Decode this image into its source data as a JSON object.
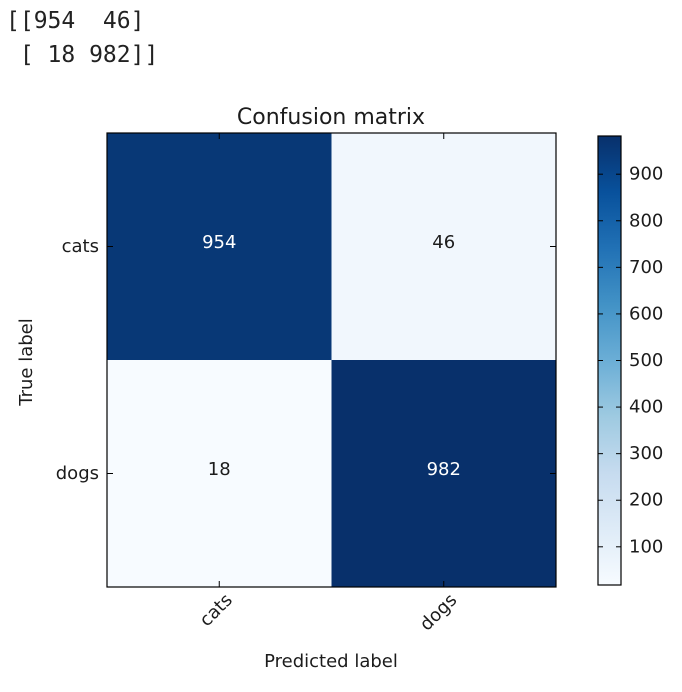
{
  "console_output": {
    "lines": [
      "[[954  46]",
      " [ 18 982]]"
    ]
  },
  "colors": {
    "low": "#f7fbff",
    "high": "#08306b",
    "text_on_dark": "#ffffff",
    "text_on_light": "#1c1c1c"
  },
  "chart_data": {
    "type": "heatmap",
    "title": "Confusion matrix",
    "xlabel": "Predicted label",
    "ylabel": "True label",
    "x_categories": [
      "cats",
      "dogs"
    ],
    "y_categories": [
      "cats",
      "dogs"
    ],
    "values": [
      [
        954,
        46
      ],
      [
        18,
        982
      ]
    ],
    "colormap": "Blues",
    "colorbar": {
      "range": [
        18,
        982
      ],
      "ticks": [
        100,
        200,
        300,
        400,
        500,
        600,
        700,
        800,
        900
      ],
      "tick_labels": [
        "100",
        "200",
        "300",
        "400",
        "500",
        "600",
        "700",
        "800",
        "900"
      ]
    },
    "grid": false
  }
}
